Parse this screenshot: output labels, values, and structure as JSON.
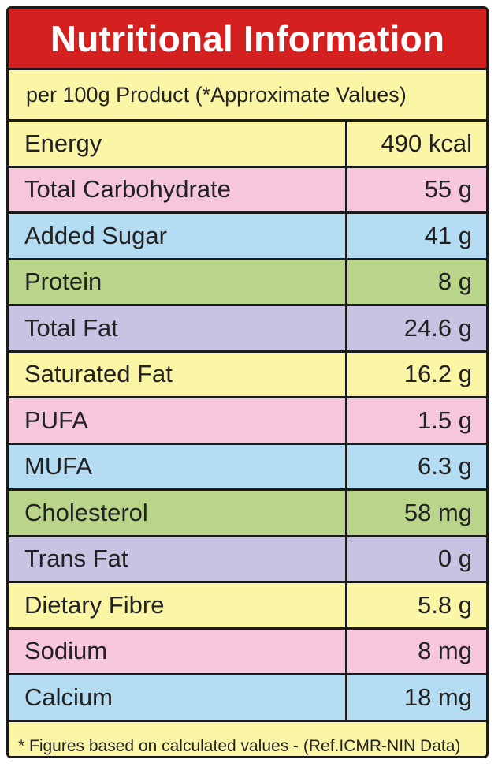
{
  "title": "Nutritional Information",
  "subtitle": "per 100g Product (*Approximate Values)",
  "footnote": "* Figures based on calculated values - (Ref.ICMR-NIN Data)",
  "colors": {
    "title_bg": "#d4201f",
    "yellow": "#fbf6a6",
    "pink": "#f6c7dc",
    "blue": "#b4dcf3",
    "green": "#b9d58a",
    "lavender": "#c8c3e3"
  },
  "rows": [
    {
      "label": "Energy",
      "value": "490 kcal",
      "color": "#fbf6a6"
    },
    {
      "label": "Total Carbohydrate",
      "value": "55 g",
      "color": "#f6c7dc"
    },
    {
      "label": "Added Sugar",
      "value": "41 g",
      "color": "#b4dcf3"
    },
    {
      "label": "Protein",
      "value": "8 g",
      "color": "#b9d58a"
    },
    {
      "label": "Total Fat",
      "value": "24.6 g",
      "color": "#c8c3e3"
    },
    {
      "label": "Saturated Fat",
      "value": "16.2 g",
      "color": "#fbf6a6"
    },
    {
      "label": "PUFA",
      "value": "1.5 g",
      "color": "#f6c7dc"
    },
    {
      "label": "MUFA",
      "value": "6.3 g",
      "color": "#b4dcf3"
    },
    {
      "label": "Cholesterol",
      "value": "58 mg",
      "color": "#b9d58a"
    },
    {
      "label": "Trans Fat",
      "value": "0 g",
      "color": "#c8c3e3"
    },
    {
      "label": "Dietary Fibre",
      "value": "5.8 g",
      "color": "#fbf6a6"
    },
    {
      "label": "Sodium",
      "value": "8 mg",
      "color": "#f6c7dc"
    },
    {
      "label": "Calcium",
      "value": "18 mg",
      "color": "#b4dcf3"
    }
  ]
}
